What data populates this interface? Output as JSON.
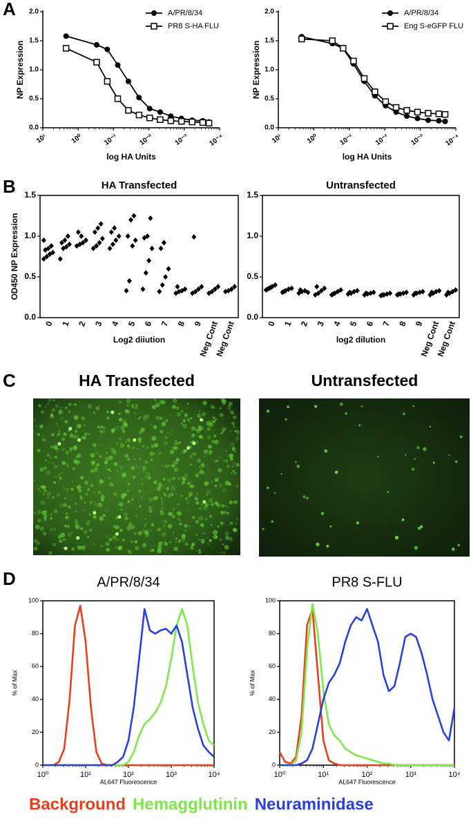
{
  "panel_labels": [
    "A",
    "B",
    "C",
    "D"
  ],
  "panel_c": {
    "titles": [
      "HA Transfected",
      "Untransfected"
    ]
  },
  "legend": [
    {
      "label": "Background",
      "color": "#e8401c"
    },
    {
      "label": "Hemagglutinin",
      "color": "#7ee84a"
    },
    {
      "label": "Neuraminidase",
      "color": "#2a3fe0"
    }
  ],
  "chart_data": [
    {
      "type": "line",
      "xlabel": "log HA Units",
      "ylabel": "NP Expression",
      "xscale": "log",
      "legend": "upper right",
      "xlim": [
        10,
        0.0001
      ],
      "ylim": [
        0,
        2
      ],
      "xticks": [
        {
          "value": 10,
          "label": "10¹"
        },
        {
          "value": 1,
          "label": "10⁰"
        },
        {
          "value": 0.1,
          "label": "10⁻¹"
        },
        {
          "value": 0.01,
          "label": "10⁻²"
        },
        {
          "value": 0.001,
          "label": "10⁻³"
        },
        {
          "value": 0.0001,
          "label": "10⁻⁴"
        }
      ],
      "yticks": [
        {
          "value": 0,
          "label": "0.0"
        },
        0.5,
        {
          "value": 1,
          "label": "1.0"
        },
        1.5,
        {
          "value": 2,
          "label": "2.0"
        }
      ],
      "x": [
        2.2,
        0.3,
        0.15,
        0.076,
        0.038,
        0.019,
        0.0095,
        0.0048,
        0.0024,
        0.0012,
        0.0006,
        0.0003,
        0.0002
      ],
      "series": [
        {
          "name": "A/PR/8/34",
          "color": "#000000",
          "marker": "circle",
          "values": [
            1.58,
            1.43,
            1.35,
            1.08,
            0.8,
            0.52,
            0.33,
            0.27,
            0.2,
            0.16,
            0.13,
            0.12,
            0.1
          ]
        },
        {
          "name": "PR8 S-HA FLU",
          "color": "#000000",
          "marker": "square",
          "values": [
            1.37,
            1.13,
            0.8,
            0.5,
            0.3,
            0.22,
            0.17,
            0.14,
            0.12,
            0.11,
            0.1,
            0.09,
            0.08
          ]
        }
      ]
    },
    {
      "type": "line",
      "xlabel": "log HA Units",
      "ylabel": "NP Expression",
      "xscale": "log",
      "legend": "upper right",
      "xlim": [
        10,
        0.0001
      ],
      "ylim": [
        0,
        2
      ],
      "xticks": [
        {
          "value": 10,
          "label": "10¹"
        },
        {
          "value": 1,
          "label": "10⁰"
        },
        {
          "value": 0.1,
          "label": "10⁻¹"
        },
        {
          "value": 0.01,
          "label": "10⁻²"
        },
        {
          "value": 0.001,
          "label": "10⁻³"
        },
        {
          "value": 0.0001,
          "label": "10⁻⁴"
        }
      ],
      "yticks": [
        {
          "value": 0,
          "label": "0.0"
        },
        0.5,
        {
          "value": 1,
          "label": "1.0"
        },
        1.5,
        {
          "value": 2,
          "label": "2.0"
        }
      ],
      "x": [
        2.2,
        0.3,
        0.15,
        0.076,
        0.038,
        0.019,
        0.0095,
        0.0048,
        0.0024,
        0.0012,
        0.0006,
        0.0003,
        0.0002
      ],
      "series": [
        {
          "name": "A/PR/8/34",
          "color": "#000000",
          "marker": "circle",
          "values": [
            1.57,
            1.45,
            1.37,
            1.1,
            0.8,
            0.55,
            0.38,
            0.27,
            0.2,
            0.16,
            0.13,
            0.12,
            0.11
          ]
        },
        {
          "name": "Eng S-eGFP FLU",
          "color": "#000000",
          "marker": "square",
          "values": [
            1.53,
            1.5,
            1.37,
            1.15,
            0.85,
            0.62,
            0.45,
            0.35,
            0.3,
            0.27,
            0.25,
            0.24,
            0.23
          ]
        }
      ]
    },
    {
      "type": "strip",
      "title": "HA Transfected",
      "xlabel": "Log2 diiution",
      "ylabel": "OD450 NP Expression",
      "frame": true,
      "color": "#000000",
      "ylim": [
        0,
        1.5
      ],
      "yticks": [
        {
          "value": 0,
          "label": "0.0"
        },
        0.5,
        {
          "value": 1,
          "label": "1.0"
        },
        1.5
      ],
      "categories": [
        "0",
        "1",
        "2",
        "3",
        "4",
        "5",
        "6",
        "7",
        "8",
        "9",
        "Neg Cont",
        "Neg Cont"
      ],
      "values": [
        [
          0.72,
          0.75,
          0.78,
          0.8,
          0.83,
          0.85,
          0.88,
          0.95
        ],
        [
          0.72,
          0.85,
          0.87,
          0.9,
          0.92,
          0.95,
          1.0
        ],
        [
          0.88,
          0.9,
          0.92,
          0.95,
          1.05,
          1.0
        ],
        [
          0.85,
          0.88,
          0.92,
          0.97,
          1.05,
          1.1,
          1.15
        ],
        [
          0.85,
          0.9,
          0.95,
          1.0,
          1.05,
          1.1
        ],
        [
          0.33,
          0.45,
          0.88,
          0.95,
          1.0,
          1.2,
          1.25
        ],
        [
          0.35,
          0.55,
          0.7,
          0.85,
          0.98,
          1.0,
          1.22
        ],
        [
          0.32,
          0.4,
          0.5,
          0.6,
          0.85,
          0.92
        ],
        [
          0.3,
          0.32,
          0.33,
          0.35,
          0.38
        ],
        [
          0.3,
          0.32,
          0.35,
          0.38,
          0.99
        ],
        [
          0.3,
          0.32,
          0.35,
          0.38
        ],
        [
          0.32,
          0.33,
          0.35,
          0.38
        ]
      ]
    },
    {
      "type": "strip",
      "title": "Untransfected",
      "xlabel": "log2 dilution",
      "frame": true,
      "color": "#000000",
      "ylim": [
        0,
        1.5
      ],
      "yticks": [
        {
          "value": 0,
          "label": "0.0"
        },
        0.5,
        {
          "value": 1,
          "label": "1.0"
        },
        1.5
      ],
      "categories": [
        "0",
        "1",
        "2",
        "3",
        "4",
        "5",
        "6",
        "7",
        "8",
        "9",
        "Neg Cont",
        "Neg Cont"
      ],
      "values": [
        [
          0.34,
          0.36,
          0.38,
          0.4,
          0.35,
          0.37
        ],
        [
          0.31,
          0.33,
          0.35,
          0.36,
          0.32
        ],
        [
          0.3,
          0.32,
          0.33,
          0.31,
          0.34
        ],
        [
          0.28,
          0.3,
          0.33,
          0.36,
          0.38
        ],
        [
          0.28,
          0.3,
          0.32,
          0.34,
          0.29
        ],
        [
          0.29,
          0.3,
          0.32,
          0.33,
          0.31
        ],
        [
          0.28,
          0.29,
          0.3,
          0.31,
          0.3
        ],
        [
          0.27,
          0.28,
          0.29,
          0.3,
          0.28
        ],
        [
          0.28,
          0.29,
          0.3,
          0.31,
          0.29
        ],
        [
          0.28,
          0.3,
          0.31,
          0.32,
          0.3
        ],
        [
          0.28,
          0.3,
          0.32,
          0.33,
          0.31
        ],
        [
          0.28,
          0.3,
          0.32,
          0.34,
          0.31
        ]
      ]
    },
    {
      "type": "line",
      "title": "A/PR/8/34",
      "xlabel": "AL647 Fluorescence",
      "ylabel": "% of Max",
      "xscale": "log",
      "frame": true,
      "xlim": [
        1,
        10000
      ],
      "ylim": [
        0,
        100
      ],
      "xticks": [
        {
          "value": 1,
          "label": "10⁰"
        },
        {
          "value": 10,
          "label": "10¹"
        },
        {
          "value": 100,
          "label": "10²"
        },
        {
          "value": 1000,
          "label": "10³"
        },
        {
          "value": 10000,
          "label": "10⁴"
        }
      ],
      "yticks": [
        0,
        20,
        40,
        60,
        80,
        100
      ],
      "x": [
        1,
        1.33,
        1.78,
        2.37,
        3.16,
        4.22,
        5.62,
        7.5,
        10,
        13.3,
        17.8,
        23.7,
        31.6,
        42.2,
        56.2,
        75,
        100,
        133,
        178,
        237,
        316,
        422,
        562,
        750,
        1000,
        1330,
        1780,
        2370,
        3160,
        4220,
        5620,
        7500,
        10000
      ],
      "series": [
        {
          "color": "#e8401c",
          "values": [
            0,
            0,
            0,
            2,
            10,
            40,
            85,
            97,
            75,
            35,
            8,
            1,
            0,
            0,
            0,
            0,
            0,
            0,
            0,
            0,
            0,
            0,
            0,
            0,
            0,
            0,
            0,
            0,
            0,
            0,
            0,
            0,
            0
          ]
        },
        {
          "color": "#7ee84a",
          "values": [
            0,
            0,
            0,
            0,
            0,
            0,
            0,
            0,
            0,
            0,
            0,
            0,
            0,
            0,
            0,
            0,
            2,
            8,
            18,
            25,
            28,
            32,
            38,
            48,
            65,
            85,
            95,
            85,
            60,
            38,
            25,
            15,
            12
          ]
        },
        {
          "color": "#2a3fe0",
          "values": [
            0,
            0,
            0,
            0,
            0,
            0,
            0,
            0,
            0,
            0,
            0,
            0,
            0,
            0,
            2,
            5,
            15,
            35,
            65,
            95,
            82,
            80,
            82,
            83,
            80,
            85,
            75,
            55,
            35,
            22,
            12,
            8,
            5
          ]
        }
      ]
    },
    {
      "type": "line",
      "title": "PR8 S-FLU",
      "xlabel": "AL647 Fluorescence",
      "ylabel": "% of Max",
      "xscale": "log",
      "frame": true,
      "xlim": [
        1,
        10000
      ],
      "ylim": [
        0,
        100
      ],
      "xticks": [
        {
          "value": 1,
          "label": "10⁰"
        },
        {
          "value": 10,
          "label": "10¹"
        },
        {
          "value": 100,
          "label": "10²"
        },
        {
          "value": 1000,
          "label": "10³"
        },
        {
          "value": 10000,
          "label": "10⁴"
        }
      ],
      "yticks": [
        0,
        20,
        40,
        60,
        80,
        100
      ],
      "x": [
        1,
        1.33,
        1.78,
        2.37,
        3.16,
        4.22,
        5.62,
        7.5,
        10,
        13.3,
        17.8,
        23.7,
        31.6,
        42.2,
        56.2,
        75,
        100,
        133,
        178,
        237,
        316,
        422,
        562,
        750,
        1000,
        1330,
        1780,
        2370,
        3160,
        4220,
        5620,
        7500,
        10000
      ],
      "series": [
        {
          "color": "#e8401c",
          "values": [
            8,
            2,
            1,
            5,
            30,
            85,
            95,
            55,
            15,
            3,
            1,
            0,
            0,
            0,
            0,
            0,
            0,
            0,
            0,
            0,
            0,
            0,
            0,
            0,
            0,
            0,
            0,
            0,
            0,
            0,
            0,
            0,
            0
          ]
        },
        {
          "color": "#7ee84a",
          "values": [
            0,
            0,
            0,
            3,
            20,
            70,
            98,
            80,
            45,
            25,
            18,
            15,
            10,
            8,
            6,
            5,
            4,
            3,
            2,
            1,
            1,
            0,
            0,
            0,
            0,
            0,
            0,
            0,
            0,
            0,
            0,
            0,
            0
          ]
        },
        {
          "color": "#2a3fe0",
          "values": [
            0,
            0,
            0,
            0,
            1,
            3,
            10,
            25,
            40,
            50,
            55,
            62,
            75,
            85,
            90,
            88,
            95,
            85,
            75,
            55,
            45,
            48,
            62,
            78,
            80,
            78,
            68,
            55,
            40,
            30,
            20,
            15,
            35
          ]
        }
      ]
    }
  ]
}
